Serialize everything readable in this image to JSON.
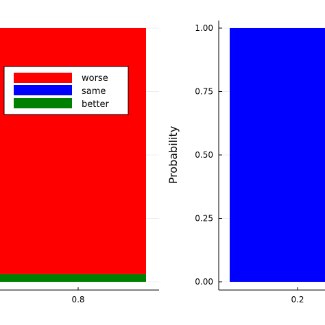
{
  "chart_data": [
    {
      "type": "bar",
      "stacked": true,
      "x_tick_labels": [
        "0.8"
      ],
      "y_tick_labels": [],
      "ylabel": "",
      "ylim": [
        0,
        1
      ],
      "grid": true,
      "legend": {
        "placement": "top-left",
        "entries": [
          {
            "label": "worse",
            "color": "#ff0000"
          },
          {
            "label": "same",
            "color": "#0000ff"
          },
          {
            "label": "better",
            "color": "#008000"
          }
        ]
      },
      "series": [
        {
          "name": "better",
          "color": "#008000",
          "values": [
            0.03
          ]
        },
        {
          "name": "same",
          "color": "#0000ff",
          "values": [
            0.0
          ]
        },
        {
          "name": "worse",
          "color": "#ff0000",
          "values": [
            0.97
          ]
        }
      ]
    },
    {
      "type": "bar",
      "stacked": true,
      "x_tick_labels": [
        "0.2"
      ],
      "y_tick_labels": [
        "0.00",
        "0.25",
        "0.50",
        "0.75",
        "1.00"
      ],
      "y_ticks": [
        0,
        0.25,
        0.5,
        0.75,
        1.0
      ],
      "ylabel": "Probability",
      "ylim": [
        0,
        1
      ],
      "grid": true,
      "series": [
        {
          "name": "better",
          "color": "#008000",
          "values": [
            0.0
          ]
        },
        {
          "name": "same",
          "color": "#0000ff",
          "values": [
            1.0
          ]
        },
        {
          "name": "worse",
          "color": "#ff0000",
          "values": [
            0.0
          ]
        }
      ]
    }
  ]
}
